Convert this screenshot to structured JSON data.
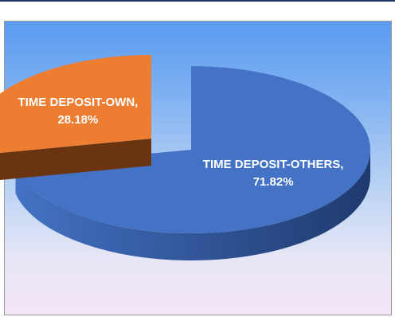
{
  "chart_data": {
    "type": "pie",
    "title": "",
    "slices": [
      {
        "label": "TIME DEPOSIT-OTHERS",
        "value": 71.82,
        "value_text": "71.82%",
        "label_text": "TIME DEPOSIT-OTHERS,",
        "color": "#4472c4",
        "side_color": "#1f3a6e"
      },
      {
        "label": "TIME DEPOSIT-OWN",
        "value": 28.18,
        "value_text": "28.18%",
        "label_text": "TIME DEPOSIT-OWN,",
        "color": "#ed7d31",
        "side_color": "#6b3410",
        "exploded": true
      }
    ],
    "style": "3d-exploded-pie",
    "legend": "none",
    "background": [
      "#5b9bf0",
      "#f4e6f6"
    ]
  }
}
